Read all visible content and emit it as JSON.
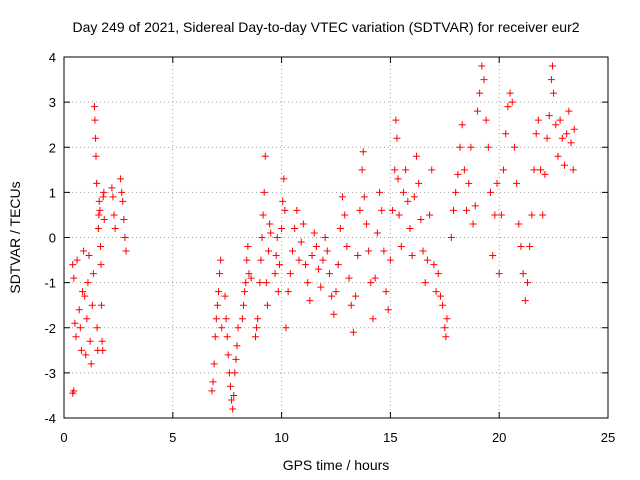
{
  "chart_data": {
    "type": "scatter",
    "title": "Day 249 of 2021, Sidereal Day-to-day VTEC variation (SDTVAR) for receiver eur2",
    "xlabel": "GPS time / hours",
    "ylabel": "SDTVAR / TECUs",
    "xlim": [
      0,
      25
    ],
    "ylim": [
      -4,
      4
    ],
    "x_ticks": [
      0,
      5,
      10,
      15,
      20,
      25
    ],
    "y_ticks": [
      -4,
      -3,
      -2,
      -1,
      0,
      1,
      2,
      3,
      4
    ],
    "grid": true,
    "marker": "+",
    "color": "#ff0000",
    "series": [
      {
        "name": "eur2",
        "points": [
          [
            0.4,
            -3.45
          ],
          [
            0.45,
            -3.4
          ],
          [
            0.4,
            -0.6
          ],
          [
            0.45,
            -0.9
          ],
          [
            0.5,
            -1.9
          ],
          [
            0.55,
            -2.2
          ],
          [
            0.6,
            -0.5
          ],
          [
            0.7,
            -1.6
          ],
          [
            0.75,
            -2.0
          ],
          [
            0.8,
            -2.5
          ],
          [
            0.85,
            -1.2
          ],
          [
            0.9,
            -0.3
          ],
          [
            0.95,
            -1.3
          ],
          [
            1.0,
            -2.6
          ],
          [
            1.05,
            -1.8
          ],
          [
            1.1,
            -1.0
          ],
          [
            1.15,
            -0.4
          ],
          [
            1.2,
            -2.3
          ],
          [
            1.25,
            -2.8
          ],
          [
            1.3,
            -1.5
          ],
          [
            1.35,
            -0.8
          ],
          [
            1.4,
            2.9
          ],
          [
            1.42,
            2.6
          ],
          [
            1.45,
            2.2
          ],
          [
            1.47,
            1.8
          ],
          [
            1.5,
            1.2
          ],
          [
            1.52,
            -2.0
          ],
          [
            1.55,
            -2.5
          ],
          [
            1.58,
            0.2
          ],
          [
            1.6,
            0.5
          ],
          [
            1.62,
            0.8
          ],
          [
            1.65,
            0.6
          ],
          [
            1.68,
            -0.2
          ],
          [
            1.7,
            -0.6
          ],
          [
            1.72,
            -1.5
          ],
          [
            1.75,
            -2.3
          ],
          [
            1.78,
            -2.5
          ],
          [
            1.8,
            0.9
          ],
          [
            1.83,
            1.0
          ],
          [
            1.85,
            0.4
          ],
          [
            2.2,
            1.1
          ],
          [
            2.25,
            0.9
          ],
          [
            2.3,
            0.5
          ],
          [
            2.35,
            0.2
          ],
          [
            2.6,
            1.3
          ],
          [
            2.65,
            1.0
          ],
          [
            2.7,
            0.8
          ],
          [
            2.75,
            0.4
          ],
          [
            2.8,
            0.0
          ],
          [
            2.85,
            -0.3
          ],
          [
            6.8,
            -3.4
          ],
          [
            6.85,
            -3.2
          ],
          [
            6.9,
            -2.8
          ],
          [
            6.95,
            -2.2
          ],
          [
            7.0,
            -1.8
          ],
          [
            7.05,
            -1.5
          ],
          [
            7.1,
            -1.2
          ],
          [
            7.15,
            -0.8
          ],
          [
            7.2,
            -0.5
          ],
          [
            7.25,
            -2.0
          ],
          [
            7.4,
            -1.3
          ],
          [
            7.45,
            -1.8
          ],
          [
            7.5,
            -2.2
          ],
          [
            7.55,
            -2.6
          ],
          [
            7.6,
            -3.0
          ],
          [
            7.65,
            -3.3
          ],
          [
            7.7,
            -3.6
          ],
          [
            7.75,
            -3.8
          ],
          [
            7.8,
            -3.5
          ],
          [
            7.85,
            -3.0
          ],
          [
            7.9,
            -2.7
          ],
          [
            7.95,
            -2.4
          ],
          [
            8.0,
            -2.0
          ],
          [
            8.2,
            -1.8
          ],
          [
            8.25,
            -1.5
          ],
          [
            8.3,
            -1.2
          ],
          [
            8.35,
            -1.0
          ],
          [
            8.4,
            -0.5
          ],
          [
            8.45,
            -0.2
          ],
          [
            8.5,
            -0.8
          ],
          [
            8.6,
            -0.9
          ],
          [
            8.8,
            -2.2
          ],
          [
            8.85,
            -2.0
          ],
          [
            8.9,
            -1.8
          ],
          [
            9.0,
            -1.0
          ],
          [
            9.05,
            -0.5
          ],
          [
            9.1,
            0.0
          ],
          [
            9.15,
            0.5
          ],
          [
            9.2,
            1.0
          ],
          [
            9.25,
            1.8
          ],
          [
            9.3,
            -1.0
          ],
          [
            9.35,
            -1.5
          ],
          [
            9.4,
            -0.3
          ],
          [
            9.45,
            0.3
          ],
          [
            9.5,
            0.1
          ],
          [
            9.7,
            -0.8
          ],
          [
            9.75,
            -0.4
          ],
          [
            9.8,
            0.0
          ],
          [
            9.85,
            -1.2
          ],
          [
            9.9,
            -0.6
          ],
          [
            10.0,
            0.2
          ],
          [
            10.05,
            0.8
          ],
          [
            10.1,
            1.3
          ],
          [
            10.15,
            0.6
          ],
          [
            10.2,
            -2.0
          ],
          [
            10.3,
            -1.2
          ],
          [
            10.4,
            -0.8
          ],
          [
            10.5,
            -0.3
          ],
          [
            10.6,
            0.2
          ],
          [
            10.7,
            0.6
          ],
          [
            10.8,
            -0.5
          ],
          [
            10.9,
            -0.1
          ],
          [
            11.0,
            0.3
          ],
          [
            11.1,
            -0.6
          ],
          [
            11.2,
            -1.0
          ],
          [
            11.3,
            -1.4
          ],
          [
            11.4,
            -0.4
          ],
          [
            11.5,
            0.1
          ],
          [
            11.6,
            -0.2
          ],
          [
            11.7,
            -0.7
          ],
          [
            11.8,
            -1.1
          ],
          [
            11.9,
            -0.5
          ],
          [
            12.0,
            0.0
          ],
          [
            12.1,
            -0.3
          ],
          [
            12.2,
            -0.8
          ],
          [
            12.3,
            -1.3
          ],
          [
            12.4,
            -1.7
          ],
          [
            12.5,
            -1.2
          ],
          [
            12.6,
            -0.6
          ],
          [
            12.7,
            0.2
          ],
          [
            12.8,
            0.9
          ],
          [
            12.9,
            0.5
          ],
          [
            13.0,
            -0.2
          ],
          [
            13.1,
            -0.9
          ],
          [
            13.2,
            -1.5
          ],
          [
            13.3,
            -2.1
          ],
          [
            13.4,
            -1.3
          ],
          [
            13.5,
            -0.4
          ],
          [
            13.6,
            0.6
          ],
          [
            13.7,
            1.5
          ],
          [
            13.75,
            1.9
          ],
          [
            13.8,
            0.9
          ],
          [
            13.9,
            0.3
          ],
          [
            14.0,
            -0.3
          ],
          [
            14.1,
            -1.0
          ],
          [
            14.2,
            -1.8
          ],
          [
            14.3,
            -0.9
          ],
          [
            14.4,
            0.1
          ],
          [
            14.5,
            1.0
          ],
          [
            14.6,
            0.6
          ],
          [
            14.7,
            -0.3
          ],
          [
            14.8,
            -1.2
          ],
          [
            14.9,
            -1.6
          ],
          [
            15.0,
            -0.5
          ],
          [
            15.1,
            0.6
          ],
          [
            15.2,
            1.5
          ],
          [
            15.25,
            2.6
          ],
          [
            15.3,
            2.2
          ],
          [
            15.35,
            1.3
          ],
          [
            15.4,
            0.5
          ],
          [
            15.5,
            -0.2
          ],
          [
            15.6,
            1.0
          ],
          [
            15.7,
            1.5
          ],
          [
            15.8,
            0.8
          ],
          [
            15.9,
            0.2
          ],
          [
            16.0,
            -0.4
          ],
          [
            16.1,
            0.9
          ],
          [
            16.2,
            1.8
          ],
          [
            16.3,
            1.2
          ],
          [
            16.4,
            0.4
          ],
          [
            16.5,
            -0.3
          ],
          [
            16.6,
            -1.0
          ],
          [
            16.7,
            -0.5
          ],
          [
            16.8,
            0.5
          ],
          [
            16.9,
            1.5
          ],
          [
            17.0,
            -0.6
          ],
          [
            17.1,
            -1.2
          ],
          [
            17.2,
            -0.8
          ],
          [
            17.3,
            -1.3
          ],
          [
            17.4,
            -1.5
          ],
          [
            17.5,
            -2.0
          ],
          [
            17.55,
            -2.2
          ],
          [
            17.6,
            -1.8
          ],
          [
            17.8,
            0.0
          ],
          [
            17.9,
            0.6
          ],
          [
            18.0,
            1.0
          ],
          [
            18.1,
            1.4
          ],
          [
            18.2,
            2.0
          ],
          [
            18.3,
            2.5
          ],
          [
            18.4,
            1.5
          ],
          [
            18.5,
            0.6
          ],
          [
            18.6,
            1.2
          ],
          [
            18.7,
            2.0
          ],
          [
            18.8,
            0.3
          ],
          [
            18.9,
            0.7
          ],
          [
            19.0,
            2.8
          ],
          [
            19.1,
            3.2
          ],
          [
            19.2,
            3.8
          ],
          [
            19.3,
            3.5
          ],
          [
            19.4,
            2.6
          ],
          [
            19.5,
            2.0
          ],
          [
            19.6,
            1.0
          ],
          [
            19.7,
            -0.4
          ],
          [
            19.8,
            0.5
          ],
          [
            19.9,
            1.2
          ],
          [
            20.0,
            -0.8
          ],
          [
            20.1,
            0.5
          ],
          [
            20.2,
            1.5
          ],
          [
            20.3,
            2.3
          ],
          [
            20.4,
            2.9
          ],
          [
            20.5,
            3.2
          ],
          [
            20.6,
            3.0
          ],
          [
            20.7,
            2.0
          ],
          [
            20.8,
            1.2
          ],
          [
            20.9,
            0.3
          ],
          [
            21.0,
            -0.2
          ],
          [
            21.1,
            -0.8
          ],
          [
            21.2,
            -1.4
          ],
          [
            21.3,
            -1.0
          ],
          [
            21.4,
            -0.2
          ],
          [
            21.5,
            0.5
          ],
          [
            21.6,
            1.5
          ],
          [
            21.7,
            2.3
          ],
          [
            21.8,
            2.6
          ],
          [
            21.9,
            1.5
          ],
          [
            22.0,
            0.5
          ],
          [
            22.1,
            1.4
          ],
          [
            22.2,
            2.2
          ],
          [
            22.3,
            2.7
          ],
          [
            22.4,
            3.5
          ],
          [
            22.45,
            3.8
          ],
          [
            22.5,
            3.2
          ],
          [
            22.6,
            2.5
          ],
          [
            22.7,
            1.8
          ],
          [
            22.8,
            2.6
          ],
          [
            22.9,
            2.2
          ],
          [
            23.0,
            1.6
          ],
          [
            23.1,
            2.3
          ],
          [
            23.2,
            2.8
          ],
          [
            23.3,
            2.1
          ],
          [
            23.4,
            1.5
          ],
          [
            23.45,
            2.4
          ]
        ]
      }
    ]
  }
}
